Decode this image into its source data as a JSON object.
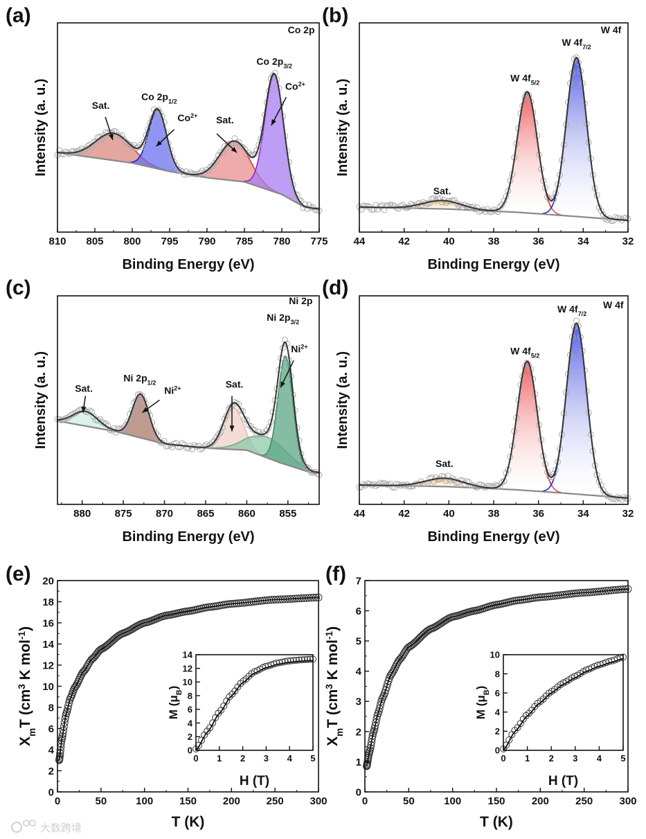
{
  "watermark": "大数跨境",
  "chart_data": [
    {
      "id": "a",
      "type": "line",
      "panel_label": "(a)",
      "title": "Co 2p",
      "xlabel": "Binding Energy (eV)",
      "ylabel": "Intensity (a. u.)",
      "xlim": [
        810,
        775
      ],
      "ylim": [
        0,
        1
      ],
      "xticks": [
        810,
        805,
        800,
        795,
        790,
        785,
        780,
        775
      ],
      "xminor": 2.5,
      "background": [
        [
          810,
          0.38
        ],
        [
          800,
          0.33
        ],
        [
          795,
          0.29
        ],
        [
          790,
          0.26
        ],
        [
          785,
          0.24
        ],
        [
          780,
          0.18
        ],
        [
          777,
          0.12
        ],
        [
          775,
          0.11
        ]
      ],
      "components": [
        {
          "name": "Sat.",
          "center": 802.5,
          "height": 0.13,
          "sigma": 2.4,
          "fill": "#d9897f",
          "stroke": "#d33",
          "gradient": false
        },
        {
          "name": "Co2+ 2p1/2",
          "center": 796.6,
          "height": 0.28,
          "sigma": 1.2,
          "fill": "#6b70ee",
          "stroke": "#1b1bd0",
          "gradient": false
        },
        {
          "name": "Sat.",
          "center": 786.3,
          "height": 0.19,
          "sigma": 2.0,
          "fill": "#e98f8f",
          "stroke": "#d33",
          "gradient": false
        },
        {
          "name": "Co2+ 2p3/2",
          "center": 781.0,
          "height": 0.56,
          "sigma": 1.25,
          "fill": "#a77cf2",
          "stroke": "#8a22d8",
          "gradient": false
        }
      ],
      "annotations": [
        {
          "parts": [
            [
              "Co 2p",
              ""
            ]
          ],
          "x": 775.6,
          "y": 0.95,
          "anchor": "end"
        },
        {
          "parts": [
            [
              "Co 2p",
              ""
            ],
            [
              "3/2",
              "sub"
            ]
          ],
          "x": 781.0,
          "y": 0.8,
          "anchor": "middle"
        },
        {
          "parts": [
            [
              "Co",
              ""
            ],
            [
              "2+",
              "sup"
            ]
          ],
          "x": 778.2,
          "y": 0.68,
          "anchor": "middle",
          "arrow": [
            [
              779.4,
              0.645
            ],
            [
              781.4,
              0.51
            ]
          ]
        },
        {
          "parts": [
            [
              "Co 2p",
              ""
            ],
            [
              "1/2",
              "sub"
            ]
          ],
          "x": 796.4,
          "y": 0.63,
          "anchor": "middle"
        },
        {
          "parts": [
            [
              "Co",
              ""
            ],
            [
              "2+",
              "sup"
            ]
          ],
          "x": 792.6,
          "y": 0.53,
          "anchor": "middle",
          "arrow": [
            [
              794.4,
              0.49
            ],
            [
              796.8,
              0.41
            ]
          ]
        },
        {
          "parts": [
            [
              "Sat.",
              ""
            ]
          ],
          "x": 787.6,
          "y": 0.52,
          "anchor": "middle",
          "arrow": [
            [
              788.7,
              0.47
            ],
            [
              786.0,
              0.38
            ]
          ]
        },
        {
          "parts": [
            [
              "Sat.",
              ""
            ]
          ],
          "x": 804.2,
          "y": 0.59,
          "anchor": "middle",
          "arrow": [
            [
              803.6,
              0.55
            ],
            [
              802.6,
              0.44
            ]
          ]
        }
      ]
    },
    {
      "id": "b",
      "type": "line",
      "panel_label": "(b)",
      "title": "W 4f",
      "xlabel": "Binding Energy (eV)",
      "ylabel": "Intensity (a. u.)",
      "xlim": [
        44,
        32
      ],
      "ylim": [
        0,
        1
      ],
      "xticks": [
        44,
        42,
        40,
        38,
        36,
        34,
        32
      ],
      "xminor": 1,
      "background": [
        [
          44,
          0.12
        ],
        [
          40,
          0.11
        ],
        [
          37,
          0.095
        ],
        [
          35,
          0.08
        ],
        [
          32,
          0.056
        ]
      ],
      "components": [
        {
          "name": "Sat.",
          "center": 40.3,
          "height": 0.04,
          "sigma": 0.85,
          "fill": "#f4b26a",
          "stroke": "#f0a050",
          "gradient": true
        },
        {
          "name": "W 4f5/2",
          "center": 36.5,
          "height": 0.58,
          "sigma": 0.45,
          "fill": "#ee5555",
          "stroke": "#dd2020",
          "gradient": true
        },
        {
          "name": "W 4f7/2",
          "center": 34.3,
          "height": 0.76,
          "sigma": 0.45,
          "fill": "#4a55dd",
          "stroke": "#1a2ad0",
          "gradient": true
        }
      ],
      "annotations": [
        {
          "parts": [
            [
              "W 4f",
              ""
            ]
          ],
          "x": 32.3,
          "y": 0.95,
          "anchor": "end"
        },
        {
          "parts": [
            [
              "W 4f",
              ""
            ],
            [
              "7/2",
              "sub"
            ]
          ],
          "x": 34.3,
          "y": 0.89,
          "anchor": "middle"
        },
        {
          "parts": [
            [
              "W 4f",
              ""
            ],
            [
              "5/2",
              "sub"
            ]
          ],
          "x": 36.6,
          "y": 0.72,
          "anchor": "middle"
        },
        {
          "parts": [
            [
              "Sat.",
              ""
            ]
          ],
          "x": 40.3,
          "y": 0.18,
          "anchor": "middle"
        }
      ]
    },
    {
      "id": "c",
      "type": "line",
      "panel_label": "(c)",
      "title": "Ni 2p",
      "xlabel": "Binding Energy (eV)",
      "ylabel": "Intensity (a. u.)",
      "xlim": [
        883,
        851.2
      ],
      "ylim": [
        0,
        1
      ],
      "xticks": [
        880,
        875,
        870,
        865,
        860,
        855
      ],
      "xminor": 2.5,
      "background": [
        [
          883,
          0.4
        ],
        [
          876,
          0.35
        ],
        [
          870,
          0.29
        ],
        [
          865,
          0.27
        ],
        [
          860,
          0.26
        ],
        [
          856,
          0.2
        ],
        [
          852,
          0.15
        ],
        [
          851.2,
          0.15
        ]
      ],
      "components": [
        {
          "name": "Sat.",
          "center": 879.6,
          "height": 0.07,
          "sigma": 1.5,
          "fill": "#cdeee0",
          "stroke": "#9fd8c0",
          "gradient": false
        },
        {
          "name": "Ni2+ 2p1/2",
          "center": 872.9,
          "height": 0.21,
          "sigma": 1.0,
          "fill": "#a8786a",
          "stroke": "#8a5a4c",
          "gradient": false
        },
        {
          "name": "Sat.",
          "center": 861.6,
          "height": 0.2,
          "sigma": 1.2,
          "fill": "#f0d0c8",
          "stroke": "#e8b8a8",
          "gradient": false
        },
        {
          "name": "Ni2+ shoulder",
          "center": 857.5,
          "height": 0.1,
          "sigma": 2.4,
          "fill": "#8fc8aa",
          "stroke": "#6fb090",
          "gradient": false
        },
        {
          "name": "Ni2+ 2p3/2",
          "center": 855.3,
          "height": 0.52,
          "sigma": 0.9,
          "fill": "#5ea585",
          "stroke": "#3e8a68",
          "gradient": false
        }
      ],
      "annotations": [
        {
          "parts": [
            [
              "Ni 2p",
              ""
            ]
          ],
          "x": 852.0,
          "y": 0.96,
          "anchor": "end"
        },
        {
          "parts": [
            [
              "Ni 2p",
              ""
            ],
            [
              "3/2",
              "sub"
            ]
          ],
          "x": 855.6,
          "y": 0.88,
          "anchor": "middle"
        },
        {
          "parts": [
            [
              "Ni",
              ""
            ],
            [
              "2+",
              "sup"
            ]
          ],
          "x": 853.6,
          "y": 0.73,
          "anchor": "middle",
          "arrow": [
            [
              854.3,
              0.69
            ],
            [
              855.9,
              0.56
            ]
          ]
        },
        {
          "parts": [
            [
              "Ni 2p",
              ""
            ],
            [
              "1/2",
              "sub"
            ]
          ],
          "x": 873.0,
          "y": 0.59,
          "anchor": "middle"
        },
        {
          "parts": [
            [
              "Ni",
              ""
            ],
            [
              "2+",
              "sup"
            ]
          ],
          "x": 869.0,
          "y": 0.53,
          "anchor": "middle",
          "arrow": [
            [
              870.6,
              0.5
            ],
            [
              872.7,
              0.44
            ]
          ]
        },
        {
          "parts": [
            [
              "Sat.",
              ""
            ]
          ],
          "x": 879.8,
          "y": 0.54,
          "anchor": "middle",
          "arrow": [
            [
              879.6,
              0.52
            ],
            [
              879.9,
              0.44
            ]
          ]
        },
        {
          "parts": [
            [
              "Sat.",
              ""
            ]
          ],
          "x": 861.5,
          "y": 0.56,
          "anchor": "middle",
          "arrow": [
            [
              861.8,
              0.52
            ],
            [
              861.8,
              0.35
            ]
          ]
        }
      ]
    },
    {
      "id": "d",
      "type": "line",
      "panel_label": "(d)",
      "title": "W 4f",
      "xlabel": "Binding Energy (eV)",
      "ylabel": "Intensity (a. u.)",
      "xlim": [
        44,
        32
      ],
      "ylim": [
        0,
        1
      ],
      "xticks": [
        44,
        42,
        40,
        38,
        36,
        34,
        32
      ],
      "xminor": 1,
      "background": [
        [
          44,
          0.093
        ],
        [
          40,
          0.085
        ],
        [
          37,
          0.07
        ],
        [
          35,
          0.055
        ],
        [
          32,
          0.03
        ]
      ],
      "components": [
        {
          "name": "Sat.",
          "center": 40.2,
          "height": 0.04,
          "sigma": 0.85,
          "fill": "#f4b26a",
          "stroke": "#f0a050",
          "gradient": true
        },
        {
          "name": "W 4f5/2",
          "center": 36.5,
          "height": 0.62,
          "sigma": 0.45,
          "fill": "#ee5555",
          "stroke": "#dd2020",
          "gradient": true
        },
        {
          "name": "W 4f7/2",
          "center": 34.3,
          "height": 0.82,
          "sigma": 0.45,
          "fill": "#4a55dd",
          "stroke": "#1a2ad0",
          "gradient": true
        }
      ],
      "annotations": [
        {
          "parts": [
            [
              "W 4f",
              ""
            ]
          ],
          "x": 32.2,
          "y": 0.94,
          "anchor": "end"
        },
        {
          "parts": [
            [
              "W 4f",
              ""
            ],
            [
              "7/2",
              "sub"
            ]
          ],
          "x": 34.5,
          "y": 0.92,
          "anchor": "middle"
        },
        {
          "parts": [
            [
              "W 4f",
              ""
            ],
            [
              "5/2",
              "sub"
            ]
          ],
          "x": 36.6,
          "y": 0.72,
          "anchor": "middle"
        },
        {
          "parts": [
            [
              "Sat.",
              ""
            ]
          ],
          "x": 40.2,
          "y": 0.18,
          "anchor": "middle"
        }
      ]
    },
    {
      "id": "e",
      "type": "scatter",
      "panel_label": "(e)",
      "xlabel": "T (K)",
      "ylabel_parts": [
        [
          "X",
          ""
        ],
        [
          "m",
          "sub"
        ],
        [
          "T (cm",
          ""
        ],
        [
          "3",
          "sup"
        ],
        [
          " K mol",
          ""
        ],
        [
          "-1",
          "sup"
        ],
        [
          ")",
          ""
        ]
      ],
      "xlim": [
        0,
        300
      ],
      "ylim": [
        0,
        20
      ],
      "xticks": [
        0,
        50,
        100,
        150,
        200,
        250,
        300
      ],
      "yticks": [
        0,
        2,
        4,
        6,
        8,
        10,
        12,
        14,
        16,
        18,
        20
      ],
      "xminor": 25,
      "yminor": 1,
      "series": [
        {
          "name": "data + fit",
          "x": [
            2,
            5,
            10,
            15,
            20,
            30,
            40,
            50,
            75,
            100,
            125,
            150,
            175,
            200,
            250,
            300
          ],
          "y": [
            3.0,
            5.0,
            7.4,
            8.9,
            9.9,
            11.4,
            12.6,
            13.5,
            15.0,
            16.0,
            16.7,
            17.1,
            17.5,
            17.8,
            18.2,
            18.4
          ]
        }
      ],
      "inset": {
        "xlabel": "H (T)",
        "ylabel_parts": [
          [
            "M (",
            ""
          ],
          [
            "μ",
            ""
          ],
          [
            "B",
            "sub"
          ],
          [
            ")",
            ""
          ]
        ],
        "xlim": [
          0,
          5
        ],
        "ylim": [
          0,
          14
        ],
        "xticks": [
          0,
          1,
          2,
          3,
          4,
          5
        ],
        "yticks": [
          0,
          2,
          4,
          6,
          8,
          10,
          12,
          14
        ],
        "series": [
          {
            "name": "M vs H",
            "x": [
              0,
              0.5,
              1,
              1.5,
              2,
              2.5,
              3,
              3.5,
              4,
              4.5,
              5
            ],
            "y": [
              0,
              2.7,
              5.4,
              7.9,
              9.9,
              11.3,
              12.1,
              12.6,
              12.9,
              13.05,
              13.15
            ]
          }
        ]
      }
    },
    {
      "id": "f",
      "type": "scatter",
      "panel_label": "(f)",
      "xlabel": "T (K)",
      "ylabel_parts": [
        [
          "X",
          ""
        ],
        [
          "m",
          "sub"
        ],
        [
          "T (cm",
          ""
        ],
        [
          "3",
          "sup"
        ],
        [
          " K mol",
          ""
        ],
        [
          "-1",
          "sup"
        ],
        [
          ")",
          ""
        ]
      ],
      "xlim": [
        0,
        300
      ],
      "ylim": [
        0,
        7
      ],
      "xticks": [
        0,
        50,
        100,
        150,
        200,
        250,
        300
      ],
      "yticks": [
        0,
        1,
        2,
        3,
        4,
        5,
        6,
        7
      ],
      "xminor": 25,
      "yminor": 0.5,
      "series": [
        {
          "name": "data + fit",
          "x": [
            2,
            5,
            10,
            15,
            20,
            30,
            40,
            50,
            75,
            100,
            125,
            150,
            175,
            200,
            250,
            300
          ],
          "y": [
            0.85,
            1.3,
            2.0,
            2.6,
            3.1,
            3.9,
            4.4,
            4.8,
            5.4,
            5.8,
            6.0,
            6.2,
            6.35,
            6.45,
            6.6,
            6.72
          ]
        }
      ],
      "inset": {
        "xlabel": "H (T)",
        "ylabel_parts": [
          [
            "M (",
            ""
          ],
          [
            "μ",
            ""
          ],
          [
            "B",
            "sub"
          ],
          [
            ")",
            ""
          ]
        ],
        "xlim": [
          0,
          5
        ],
        "ylim": [
          0,
          10
        ],
        "xticks": [
          0,
          1,
          2,
          3,
          4,
          5
        ],
        "yticks": [
          0,
          2,
          4,
          6,
          8,
          10
        ],
        "series": [
          {
            "name": "M vs H",
            "x": [
              0,
              0.5,
              1,
              1.5,
              2,
              2.5,
              3,
              3.5,
              4,
              4.5,
              5
            ],
            "y": [
              0,
              2.0,
              3.6,
              4.9,
              6.0,
              6.9,
              7.6,
              8.3,
              8.8,
              9.2,
              9.6
            ]
          }
        ]
      }
    }
  ]
}
